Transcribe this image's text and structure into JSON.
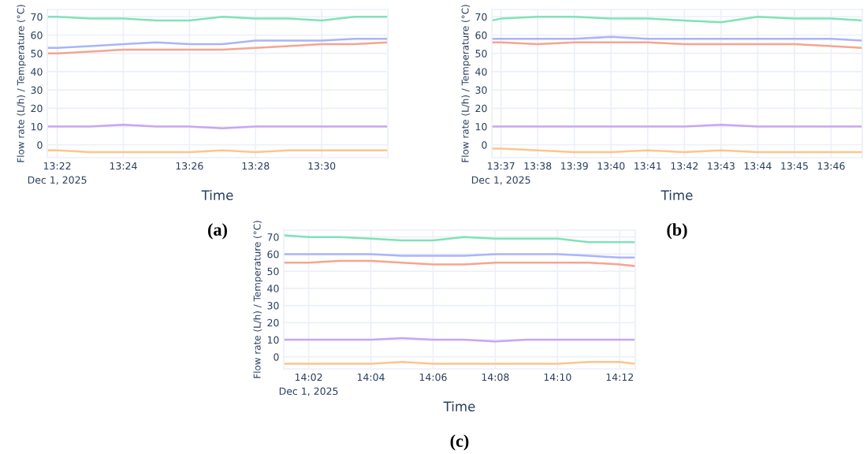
{
  "chart_data": [
    {
      "type": "line",
      "title": "(a)",
      "xlabel": "Time",
      "ylabel": "Flow rate (L/h) / Temperature (°C)",
      "grid": true,
      "legend": false,
      "x": [
        13.36167,
        13.36667,
        13.38333,
        13.4,
        13.41667,
        13.43333,
        13.45,
        13.46667,
        13.48333,
        13.5,
        13.51667,
        13.53333
      ],
      "xlim": [
        13.36167,
        13.53333
      ],
      "xticks": [
        {
          "value": 13.36667,
          "label": "13:22\nDec 1, 2025"
        },
        {
          "value": 13.4,
          "label": "13:24"
        },
        {
          "value": 13.43333,
          "label": "13:26"
        },
        {
          "value": 13.46667,
          "label": "13:28"
        },
        {
          "value": 13.5,
          "label": "13:30"
        }
      ],
      "ylim": [
        -7,
        74
      ],
      "yticks": [
        0,
        10,
        20,
        30,
        40,
        50,
        60,
        70
      ],
      "series": [
        {
          "color": "#7fe3b6",
          "values": [
            70,
            70,
            69,
            69,
            68,
            68,
            70,
            69,
            69,
            68,
            70,
            70
          ]
        },
        {
          "color": "#aab4fa",
          "values": [
            53,
            53,
            54,
            55,
            56,
            55,
            55,
            57,
            57,
            57,
            58,
            58
          ]
        },
        {
          "color": "#f7a48f",
          "values": [
            50,
            50,
            51,
            52,
            52,
            52,
            52,
            53,
            54,
            55,
            55,
            56
          ]
        },
        {
          "color": "#c9a5f2",
          "values": [
            10,
            10,
            10,
            11,
            10,
            10,
            9,
            10,
            10,
            10,
            10,
            10
          ]
        },
        {
          "color": "#ffc48c",
          "values": [
            -3,
            -3,
            -4,
            -4,
            -4,
            -4,
            -3,
            -4,
            -3,
            -3,
            -3,
            -3
          ]
        }
      ]
    },
    {
      "type": "line",
      "title": "(b)",
      "xlabel": "Time",
      "ylabel": "Flow rate (L/h) / Temperature (°C)",
      "grid": true,
      "legend": false,
      "x": [
        13.6125,
        13.61667,
        13.63333,
        13.65,
        13.66667,
        13.68333,
        13.7,
        13.71667,
        13.73333,
        13.75,
        13.76667,
        13.78083
      ],
      "xlim": [
        13.6125,
        13.78083
      ],
      "xticks": [
        {
          "value": 13.61667,
          "label": "13:37\nDec 1, 2025"
        },
        {
          "value": 13.63333,
          "label": "13:38"
        },
        {
          "value": 13.65,
          "label": "13:39"
        },
        {
          "value": 13.66667,
          "label": "13:40"
        },
        {
          "value": 13.68333,
          "label": "13:41"
        },
        {
          "value": 13.7,
          "label": "13:42"
        },
        {
          "value": 13.71667,
          "label": "13:43"
        },
        {
          "value": 13.73333,
          "label": "13:44"
        },
        {
          "value": 13.75,
          "label": "13:45"
        },
        {
          "value": 13.76667,
          "label": "13:46"
        }
      ],
      "ylim": [
        -7,
        74
      ],
      "yticks": [
        0,
        10,
        20,
        30,
        40,
        50,
        60,
        70
      ],
      "series": [
        {
          "color": "#7fe3b6",
          "values": [
            68,
            69,
            70,
            70,
            69,
            69,
            68,
            67,
            70,
            69,
            69,
            68
          ]
        },
        {
          "color": "#aab4fa",
          "values": [
            58,
            58,
            58,
            58,
            59,
            58,
            58,
            58,
            58,
            58,
            58,
            57
          ]
        },
        {
          "color": "#f7a48f",
          "values": [
            56,
            56,
            55,
            56,
            56,
            56,
            55,
            55,
            55,
            55,
            54,
            53
          ]
        },
        {
          "color": "#c9a5f2",
          "values": [
            10,
            10,
            10,
            10,
            10,
            10,
            10,
            11,
            10,
            10,
            10,
            10
          ]
        },
        {
          "color": "#ffc48c",
          "values": [
            -2,
            -2,
            -3,
            -4,
            -4,
            -3,
            -4,
            -3,
            -4,
            -4,
            -4,
            -4
          ]
        }
      ]
    },
    {
      "type": "line",
      "title": "(c)",
      "xlabel": "Time",
      "ylabel": "Flow rate (L/h) / Temperature (°C)",
      "grid": true,
      "legend": false,
      "x": [
        14.02,
        14.03333,
        14.05,
        14.06667,
        14.08333,
        14.1,
        14.11667,
        14.13333,
        14.15,
        14.16667,
        14.18333,
        14.2,
        14.20833
      ],
      "xlim": [
        14.02,
        14.20833
      ],
      "xticks": [
        {
          "value": 14.03333,
          "label": "14:02\nDec 1, 2025"
        },
        {
          "value": 14.06667,
          "label": "14:04"
        },
        {
          "value": 14.1,
          "label": "14:06"
        },
        {
          "value": 14.13333,
          "label": "14:08"
        },
        {
          "value": 14.16667,
          "label": "14:10"
        },
        {
          "value": 14.2,
          "label": "14:12"
        }
      ],
      "ylim": [
        -7,
        74
      ],
      "yticks": [
        0,
        10,
        20,
        30,
        40,
        50,
        60,
        70
      ],
      "series": [
        {
          "color": "#7fe3b6",
          "values": [
            71,
            70,
            70,
            69,
            68,
            68,
            70,
            69,
            69,
            69,
            67,
            67,
            67
          ]
        },
        {
          "color": "#aab4fa",
          "values": [
            60,
            60,
            60,
            60,
            59,
            59,
            59,
            60,
            60,
            60,
            59,
            58,
            58
          ]
        },
        {
          "color": "#f7a48f",
          "values": [
            55,
            55,
            56,
            56,
            55,
            54,
            54,
            55,
            55,
            55,
            55,
            54,
            53
          ]
        },
        {
          "color": "#c9a5f2",
          "values": [
            10,
            10,
            10,
            10,
            11,
            10,
            10,
            9,
            10,
            10,
            10,
            10,
            10
          ]
        },
        {
          "color": "#ffc48c",
          "values": [
            -4,
            -4,
            -4,
            -4,
            -3,
            -4,
            -4,
            -4,
            -4,
            -4,
            -3,
            -3,
            -4
          ]
        }
      ]
    }
  ]
}
